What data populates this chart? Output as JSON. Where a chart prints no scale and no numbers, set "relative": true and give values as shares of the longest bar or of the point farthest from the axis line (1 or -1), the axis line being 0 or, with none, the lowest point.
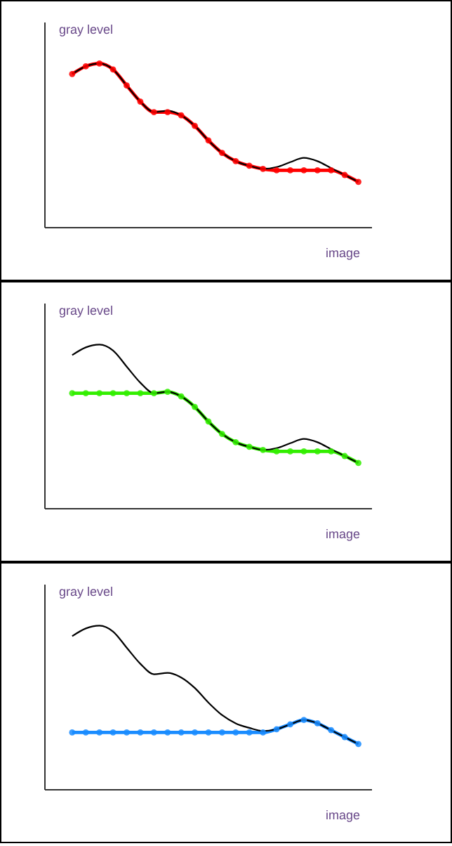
{
  "chart_data": [
    {
      "type": "line",
      "relative": true,
      "xlabel": "image",
      "ylabel": "gray level",
      "categories": [
        null,
        null,
        null,
        null,
        null,
        null,
        null,
        null,
        null,
        null,
        null,
        null,
        null,
        null,
        null,
        null,
        null,
        null,
        null,
        null,
        null,
        null
      ],
      "series": [
        {
          "color": "#000000",
          "marker": "none",
          "values": [
            0.936,
            0.983,
            1.0,
            0.964,
            0.866,
            0.768,
            0.704,
            0.712,
            0.684,
            0.62,
            0.531,
            0.455,
            0.405,
            0.377,
            0.358,
            0.369,
            0.399,
            0.425,
            0.405,
            0.363,
            0.321,
            0.279
          ]
        },
        {
          "color": "#ff0000",
          "marker": "circle",
          "values": [
            0.936,
            0.983,
            1.0,
            0.964,
            0.866,
            0.768,
            0.704,
            0.704,
            0.684,
            0.62,
            0.531,
            0.455,
            0.405,
            0.377,
            0.358,
            0.349,
            0.349,
            0.349,
            0.349,
            0.349,
            0.321,
            0.279
          ]
        }
      ]
    },
    {
      "type": "line",
      "relative": true,
      "xlabel": "image",
      "ylabel": "gray level",
      "categories": [
        null,
        null,
        null,
        null,
        null,
        null,
        null,
        null,
        null,
        null,
        null,
        null,
        null,
        null,
        null,
        null,
        null,
        null,
        null,
        null,
        null,
        null
      ],
      "series": [
        {
          "color": "#000000",
          "marker": "none",
          "values": [
            0.936,
            0.983,
            1.0,
            0.964,
            0.866,
            0.768,
            0.704,
            0.712,
            0.684,
            0.62,
            0.531,
            0.455,
            0.405,
            0.377,
            0.358,
            0.369,
            0.399,
            0.425,
            0.405,
            0.363,
            0.321,
            0.279
          ]
        },
        {
          "color": "#33ee00",
          "marker": "circle",
          "values": [
            0.704,
            0.704,
            0.704,
            0.704,
            0.704,
            0.704,
            0.704,
            0.712,
            0.684,
            0.62,
            0.531,
            0.455,
            0.405,
            0.377,
            0.358,
            0.349,
            0.349,
            0.349,
            0.349,
            0.349,
            0.321,
            0.279
          ]
        }
      ]
    },
    {
      "type": "line",
      "relative": true,
      "xlabel": "image",
      "ylabel": "gray level",
      "categories": [
        null,
        null,
        null,
        null,
        null,
        null,
        null,
        null,
        null,
        null,
        null,
        null,
        null,
        null,
        null,
        null,
        null,
        null,
        null,
        null,
        null,
        null
      ],
      "series": [
        {
          "color": "#000000",
          "marker": "none",
          "values": [
            0.936,
            0.983,
            1.0,
            0.964,
            0.866,
            0.768,
            0.704,
            0.712,
            0.684,
            0.62,
            0.531,
            0.455,
            0.405,
            0.377,
            0.358,
            0.369,
            0.399,
            0.425,
            0.405,
            0.363,
            0.321,
            0.279
          ]
        },
        {
          "color": "#1a8cff",
          "marker": "circle",
          "values": [
            0.349,
            0.349,
            0.349,
            0.349,
            0.349,
            0.349,
            0.349,
            0.349,
            0.349,
            0.349,
            0.349,
            0.349,
            0.349,
            0.349,
            0.349,
            0.369,
            0.399,
            0.425,
            0.405,
            0.363,
            0.321,
            0.279
          ]
        }
      ]
    }
  ]
}
